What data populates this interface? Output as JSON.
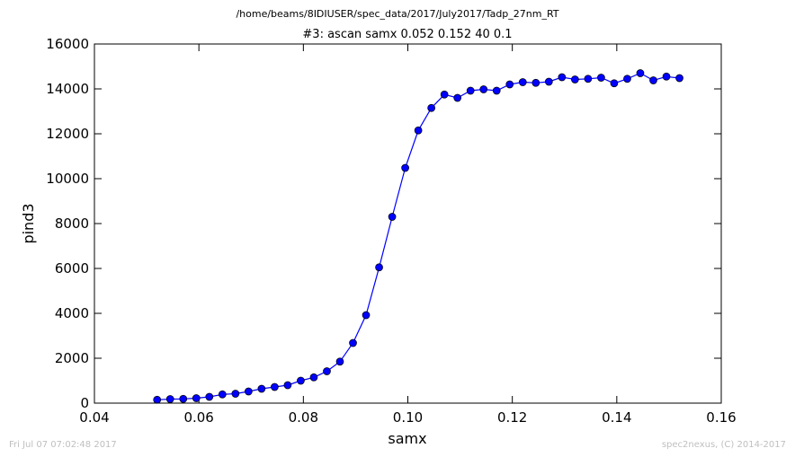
{
  "figure": {
    "suptitle": "/home/beams/8IDIUSER/spec_data/2017/July2017/Tadp_27nm_RT",
    "footer_left": "Fri Jul 07 07:02:48 2017",
    "footer_right": "spec2nexus, (C) 2014-2017"
  },
  "chart_data": {
    "type": "line",
    "title": "#3: ascan  samx 0.052 0.152  40 0.1",
    "xlabel": "samx",
    "ylabel": "pind3",
    "xlim": [
      0.04,
      0.16
    ],
    "ylim": [
      0,
      16000
    ],
    "xticks": [
      "0.04",
      "0.06",
      "0.08",
      "0.10",
      "0.12",
      "0.14",
      "0.16"
    ],
    "yticks": [
      "0",
      "2000",
      "4000",
      "6000",
      "8000",
      "10000",
      "12000",
      "14000",
      "16000"
    ],
    "grid": false,
    "color": "#0000ff",
    "marker": "circle",
    "series": [
      {
        "x": [
          0.052,
          0.0545,
          0.057,
          0.0595,
          0.062,
          0.0645,
          0.067,
          0.0695,
          0.072,
          0.0745,
          0.077,
          0.0795,
          0.082,
          0.0845,
          0.087,
          0.0895,
          0.092,
          0.0945,
          0.097,
          0.0995,
          0.102,
          0.1045,
          0.107,
          0.1095,
          0.112,
          0.1145,
          0.117,
          0.1195,
          0.122,
          0.1245,
          0.127,
          0.1295,
          0.132,
          0.1345,
          0.137,
          0.1395,
          0.142,
          0.1445,
          0.147,
          0.1495,
          0.152
        ],
        "y": [
          150,
          180,
          190,
          220,
          280,
          390,
          420,
          520,
          640,
          720,
          800,
          1000,
          1150,
          1420,
          1850,
          2680,
          3920,
          6050,
          8300,
          10480,
          12150,
          13150,
          13750,
          13600,
          13920,
          13980,
          13920,
          14200,
          14300,
          14270,
          14320,
          14520,
          14420,
          14450,
          14500,
          14250,
          14450,
          14700,
          14380,
          14550,
          14480
        ]
      }
    ]
  }
}
